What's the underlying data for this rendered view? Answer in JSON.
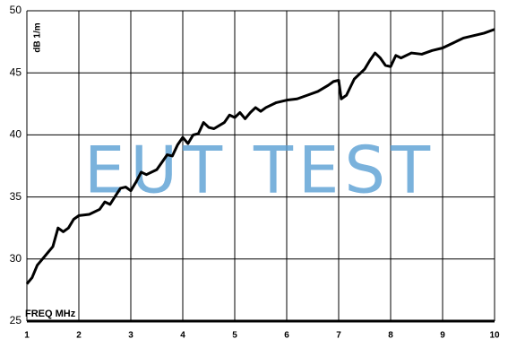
{
  "chart_data": {
    "type": "line",
    "x_label": "FREQ  MHz",
    "y_label": "dB 1/m",
    "watermark": "EUT TEST",
    "x": [
      1.0,
      1.1,
      1.2,
      1.3,
      1.4,
      1.5,
      1.6,
      1.7,
      1.8,
      1.9,
      2.0,
      2.2,
      2.4,
      2.5,
      2.6,
      2.8,
      2.9,
      3.0,
      3.1,
      3.2,
      3.3,
      3.5,
      3.6,
      3.7,
      3.8,
      3.9,
      4.0,
      4.1,
      4.2,
      4.3,
      4.4,
      4.5,
      4.6,
      4.8,
      4.9,
      5.0,
      5.1,
      5.2,
      5.3,
      5.4,
      5.5,
      5.6,
      5.8,
      6.0,
      6.2,
      6.4,
      6.6,
      6.8,
      6.9,
      7.0,
      7.05,
      7.15,
      7.3,
      7.5,
      7.6,
      7.7,
      7.8,
      7.9,
      8.0,
      8.1,
      8.2,
      8.4,
      8.6,
      8.8,
      9.0,
      9.2,
      9.4,
      9.6,
      9.8,
      10.0
    ],
    "series": [
      {
        "name": "dB 1/m",
        "color": "#000000",
        "values": [
          28.0,
          28.5,
          29.5,
          30.0,
          30.5,
          31.0,
          32.5,
          32.2,
          32.5,
          33.2,
          33.5,
          33.6,
          34.0,
          34.6,
          34.4,
          35.7,
          35.8,
          35.5,
          36.2,
          37.0,
          36.8,
          37.2,
          37.8,
          38.4,
          38.3,
          39.2,
          39.8,
          39.3,
          40.0,
          40.1,
          41.0,
          40.6,
          40.5,
          41.0,
          41.6,
          41.4,
          41.8,
          41.3,
          41.8,
          42.2,
          41.9,
          42.2,
          42.6,
          42.8,
          42.9,
          43.2,
          43.5,
          44.0,
          44.3,
          44.4,
          42.9,
          43.2,
          44.5,
          45.3,
          46.0,
          46.6,
          46.2,
          45.6,
          45.5,
          46.4,
          46.2,
          46.6,
          46.5,
          46.8,
          47.0,
          47.4,
          47.8,
          48.0,
          48.2,
          48.5
        ]
      }
    ],
    "xlim": [
      1,
      10
    ],
    "xticks": [
      1,
      2,
      3,
      4,
      5,
      6,
      7,
      8,
      9,
      10
    ],
    "ylim": [
      25,
      50
    ],
    "yticks": [
      25,
      30,
      35,
      40,
      45,
      50
    ],
    "grid": true
  }
}
